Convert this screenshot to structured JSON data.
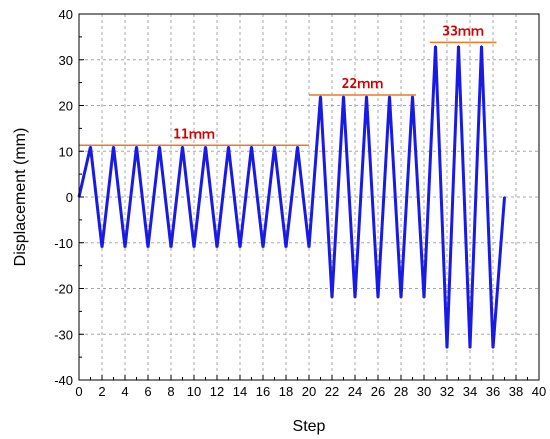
{
  "chart_data": {
    "type": "line",
    "title": "",
    "xlabel": "Step",
    "ylabel": "Displacement (mm)",
    "xlim": [
      0,
      40
    ],
    "ylim": [
      -40,
      40
    ],
    "x_ticks": [
      0,
      2,
      4,
      6,
      8,
      10,
      12,
      14,
      16,
      18,
      20,
      22,
      24,
      26,
      28,
      30,
      32,
      34,
      36,
      38,
      40
    ],
    "y_ticks": [
      -40,
      -30,
      -20,
      -10,
      0,
      10,
      20,
      30,
      40
    ],
    "grid": true,
    "series": [
      {
        "color": "#1a1ae6",
        "x": [
          0,
          1,
          2,
          3,
          4,
          5,
          6,
          7,
          8,
          9,
          10,
          11,
          12,
          13,
          14,
          15,
          16,
          17,
          18,
          19,
          20,
          21,
          22,
          23,
          24,
          25,
          26,
          27,
          28,
          29,
          30,
          31,
          32,
          33,
          34,
          35,
          36,
          37
        ],
        "y": [
          0,
          11,
          -11,
          11,
          -11,
          11,
          -11,
          11,
          -11,
          11,
          -11,
          11,
          -11,
          11,
          -11,
          11,
          -11,
          11,
          -11,
          11,
          -11,
          22,
          -22,
          22,
          -22,
          22,
          -22,
          22,
          -22,
          22,
          -22,
          33,
          -33,
          33,
          -33,
          33,
          -33,
          0
        ]
      }
    ],
    "annotations": [
      {
        "text": "11ｍｍ",
        "x_start": 0,
        "x_end": 20,
        "y": 11.3,
        "color": "#f07820"
      },
      {
        "text": "22ｍｍ",
        "x_start": 20,
        "x_end": 29.3,
        "y": 22.3,
        "color": "#f07820"
      },
      {
        "text": "33ｍｍ",
        "x_start": 30.5,
        "x_end": 36.3,
        "y": 33.8,
        "color": "#f07820"
      }
    ]
  }
}
